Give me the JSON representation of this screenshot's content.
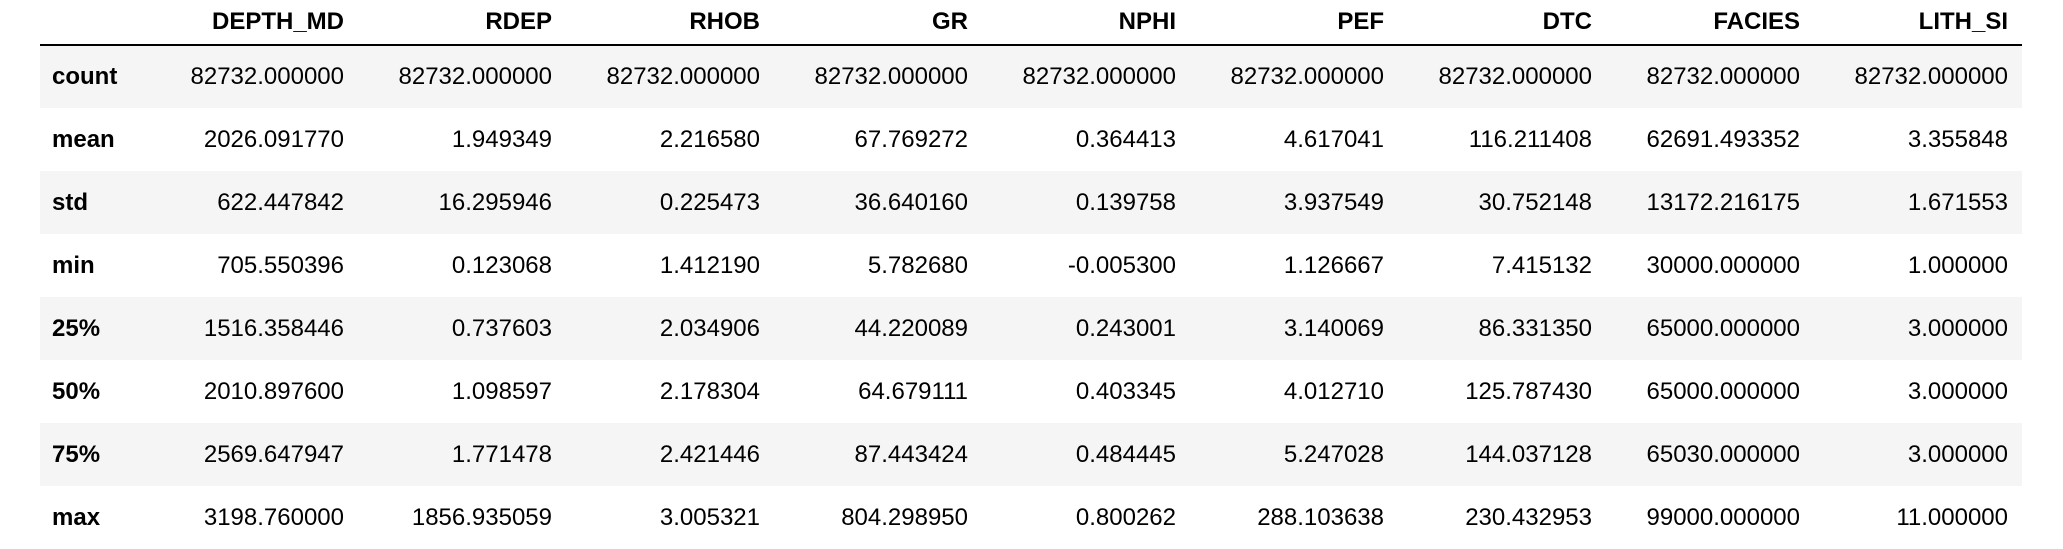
{
  "table": {
    "columns": [
      "DEPTH_MD",
      "RDEP",
      "RHOB",
      "GR",
      "NPHI",
      "PEF",
      "DTC",
      "FACIES",
      "LITH_SI"
    ],
    "rows": [
      {
        "label": "count",
        "values": [
          "82732.000000",
          "82732.000000",
          "82732.000000",
          "82732.000000",
          "82732.000000",
          "82732.000000",
          "82732.000000",
          "82732.000000",
          "82732.000000"
        ]
      },
      {
        "label": "mean",
        "values": [
          "2026.091770",
          "1.949349",
          "2.216580",
          "67.769272",
          "0.364413",
          "4.617041",
          "116.211408",
          "62691.493352",
          "3.355848"
        ]
      },
      {
        "label": "std",
        "values": [
          "622.447842",
          "16.295946",
          "0.225473",
          "36.640160",
          "0.139758",
          "3.937549",
          "30.752148",
          "13172.216175",
          "1.671553"
        ]
      },
      {
        "label": "min",
        "values": [
          "705.550396",
          "0.123068",
          "1.412190",
          "5.782680",
          "-0.005300",
          "1.126667",
          "7.415132",
          "30000.000000",
          "1.000000"
        ]
      },
      {
        "label": "25%",
        "values": [
          "1516.358446",
          "0.737603",
          "2.034906",
          "44.220089",
          "0.243001",
          "3.140069",
          "86.331350",
          "65000.000000",
          "3.000000"
        ]
      },
      {
        "label": "50%",
        "values": [
          "2010.897600",
          "1.098597",
          "2.178304",
          "64.679111",
          "0.403345",
          "4.012710",
          "125.787430",
          "65000.000000",
          "3.000000"
        ]
      },
      {
        "label": "75%",
        "values": [
          "2569.647947",
          "1.771478",
          "2.421446",
          "87.443424",
          "0.484445",
          "5.247028",
          "144.037128",
          "65030.000000",
          "3.000000"
        ]
      },
      {
        "label": "max",
        "values": [
          "3198.760000",
          "1856.935059",
          "3.005321",
          "804.298950",
          "0.800262",
          "288.103638",
          "230.432953",
          "99000.000000",
          "11.000000"
        ]
      }
    ]
  }
}
